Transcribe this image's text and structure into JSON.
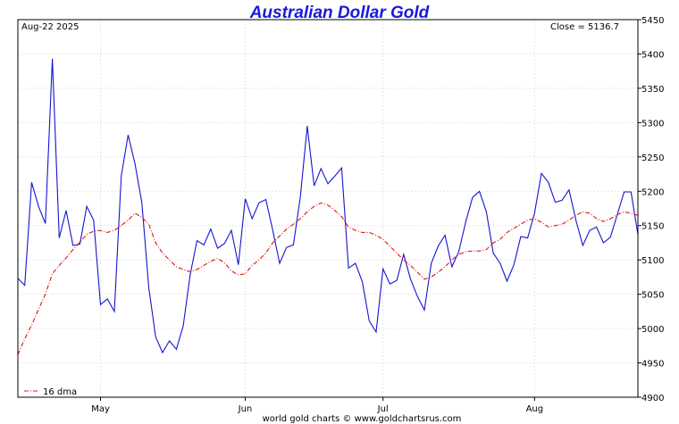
{
  "chart_data": {
    "type": "line",
    "title": "Australian Dollar Gold",
    "date_label": "Aug-22  2025",
    "close_label": "Close = 5136.7",
    "footer": "world gold charts © www.goldchartsrus.com",
    "ylim": [
      4900,
      5450
    ],
    "yticks": [
      4900,
      4950,
      5000,
      5050,
      5100,
      5150,
      5200,
      5250,
      5300,
      5350,
      5400,
      5450
    ],
    "xlim": [
      0,
      90
    ],
    "month_labels": [
      {
        "label": "May",
        "x": 12
      },
      {
        "label": "Jun",
        "x": 33
      },
      {
        "label": "Jul",
        "x": 53
      },
      {
        "label": "Aug",
        "x": 75
      }
    ],
    "grid": true,
    "colors": {
      "price": "#1414d2",
      "dma": "#e01414",
      "title": "#1a1adc"
    },
    "series": [
      {
        "name": "Price",
        "style": "solid",
        "values": [
          5073,
          5063,
          5213,
          5178,
          5153,
          5393,
          5132,
          5172,
          5121,
          5123,
          5178,
          5158,
          5035,
          5043,
          5025,
          5222,
          5282,
          5240,
          5183,
          5060,
          4988,
          4965,
          4982,
          4970,
          5004,
          5078,
          5128,
          5122,
          5145,
          5117,
          5124,
          5143,
          5093,
          5189,
          5160,
          5183,
          5188,
          5143,
          5095,
          5118,
          5122,
          5192,
          5295,
          5208,
          5233,
          5211,
          5222,
          5234,
          5088,
          5095,
          5068,
          5011,
          4995,
          5087,
          5065,
          5070,
          5108,
          5072,
          5047,
          5027,
          5095,
          5120,
          5136,
          5090,
          5112,
          5155,
          5191,
          5200,
          5170,
          5110,
          5095,
          5069,
          5093,
          5134,
          5132,
          5168,
          5226,
          5213,
          5184,
          5187,
          5202,
          5158,
          5121,
          5143,
          5148,
          5125,
          5133,
          5166,
          5199,
          5199,
          5137
        ]
      },
      {
        "name": "16 dma",
        "style": "dash-dot",
        "values": [
          4962,
          4985,
          5005,
          5028,
          5050,
          5080,
          5092,
          5103,
          5115,
          5126,
          5137,
          5142,
          5143,
          5140,
          5143,
          5150,
          5158,
          5168,
          5162,
          5152,
          5125,
          5110,
          5100,
          5090,
          5086,
          5083,
          5086,
          5092,
          5098,
          5102,
          5096,
          5084,
          5078,
          5080,
          5092,
          5100,
          5110,
          5125,
          5135,
          5145,
          5152,
          5160,
          5170,
          5178,
          5183,
          5180,
          5172,
          5163,
          5148,
          5143,
          5140,
          5140,
          5136,
          5130,
          5120,
          5110,
          5100,
          5092,
          5082,
          5072,
          5075,
          5082,
          5090,
          5100,
          5108,
          5112,
          5113,
          5113,
          5115,
          5125,
          5130,
          5140,
          5146,
          5152,
          5158,
          5160,
          5155,
          5148,
          5150,
          5152,
          5158,
          5165,
          5170,
          5168,
          5160,
          5156,
          5160,
          5166,
          5170,
          5168,
          5165
        ]
      }
    ],
    "legend": {
      "label": "16 dma",
      "position": "bottom-left"
    }
  }
}
